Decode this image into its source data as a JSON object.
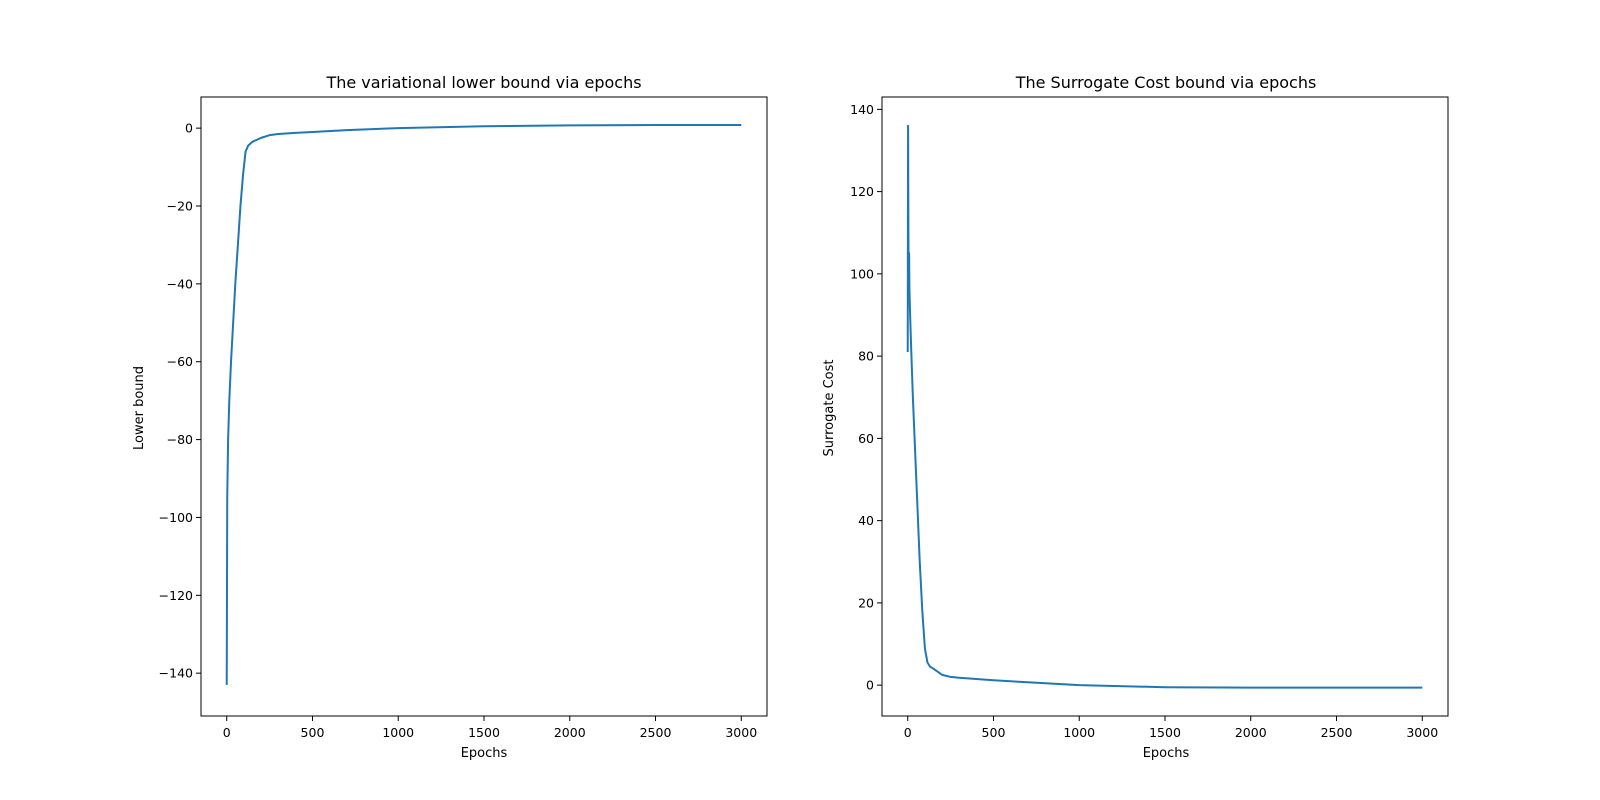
{
  "chart_data": [
    {
      "type": "line",
      "title": "The variational lower bound via epochs",
      "xlabel": "Epochs",
      "ylabel": "Lower bound",
      "xlim": [
        -150,
        3150
      ],
      "ylim": [
        -151,
        8
      ],
      "xticks": [
        0,
        500,
        1000,
        1500,
        2000,
        2500,
        3000
      ],
      "yticks": [
        -140,
        -120,
        -100,
        -80,
        -60,
        -40,
        -20,
        0
      ],
      "ytick_labels": [
        "−140",
        "−120",
        "−100",
        "−80",
        "−60",
        "−40",
        "−20",
        "0"
      ],
      "grid": false,
      "legend": "none",
      "color": "#1f77b4",
      "series": [
        {
          "x": [
            0,
            3,
            8,
            15,
            25,
            35,
            50,
            65,
            80,
            95,
            110,
            125,
            150,
            200,
            250,
            300,
            400,
            500,
            700,
            1000,
            1500,
            2000,
            2500,
            3000
          ],
          "y": [
            -143,
            -95,
            -80,
            -70,
            -60,
            -52,
            -40,
            -30,
            -20,
            -12,
            -6,
            -4.5,
            -3.5,
            -2.5,
            -1.8,
            -1.5,
            -1.2,
            -1,
            -0.5,
            0,
            0.5,
            0.7,
            0.8,
            0.8
          ]
        }
      ]
    },
    {
      "type": "line",
      "title": "The Surrogate Cost bound via epochs",
      "xlabel": "Epochs",
      "ylabel": "Surrogate Cost",
      "xlim": [
        -150,
        3150
      ],
      "ylim": [
        -7.5,
        143
      ],
      "xticks": [
        0,
        500,
        1000,
        1500,
        2000,
        2500,
        3000
      ],
      "yticks": [
        0,
        20,
        40,
        60,
        80,
        100,
        120,
        140
      ],
      "ytick_labels": [
        "0",
        "20",
        "40",
        "60",
        "80",
        "100",
        "120",
        "140"
      ],
      "grid": false,
      "legend": "none",
      "color": "#1f77b4",
      "series": [
        {
          "x": [
            0,
            2,
            4,
            6,
            8,
            10,
            14,
            20,
            30,
            40,
            55,
            70,
            85,
            100,
            115,
            130,
            150,
            200,
            250,
            300,
            500,
            700,
            1000,
            1500,
            2000,
            2500,
            3000
          ],
          "y": [
            81,
            136,
            110,
            95,
            105,
            96,
            90,
            82,
            70,
            60,
            45,
            30,
            18,
            9,
            5.5,
            4.5,
            4,
            2.5,
            2,
            1.8,
            1.2,
            0.7,
            0,
            -0.5,
            -0.6,
            -0.6,
            -0.6
          ]
        }
      ]
    }
  ]
}
